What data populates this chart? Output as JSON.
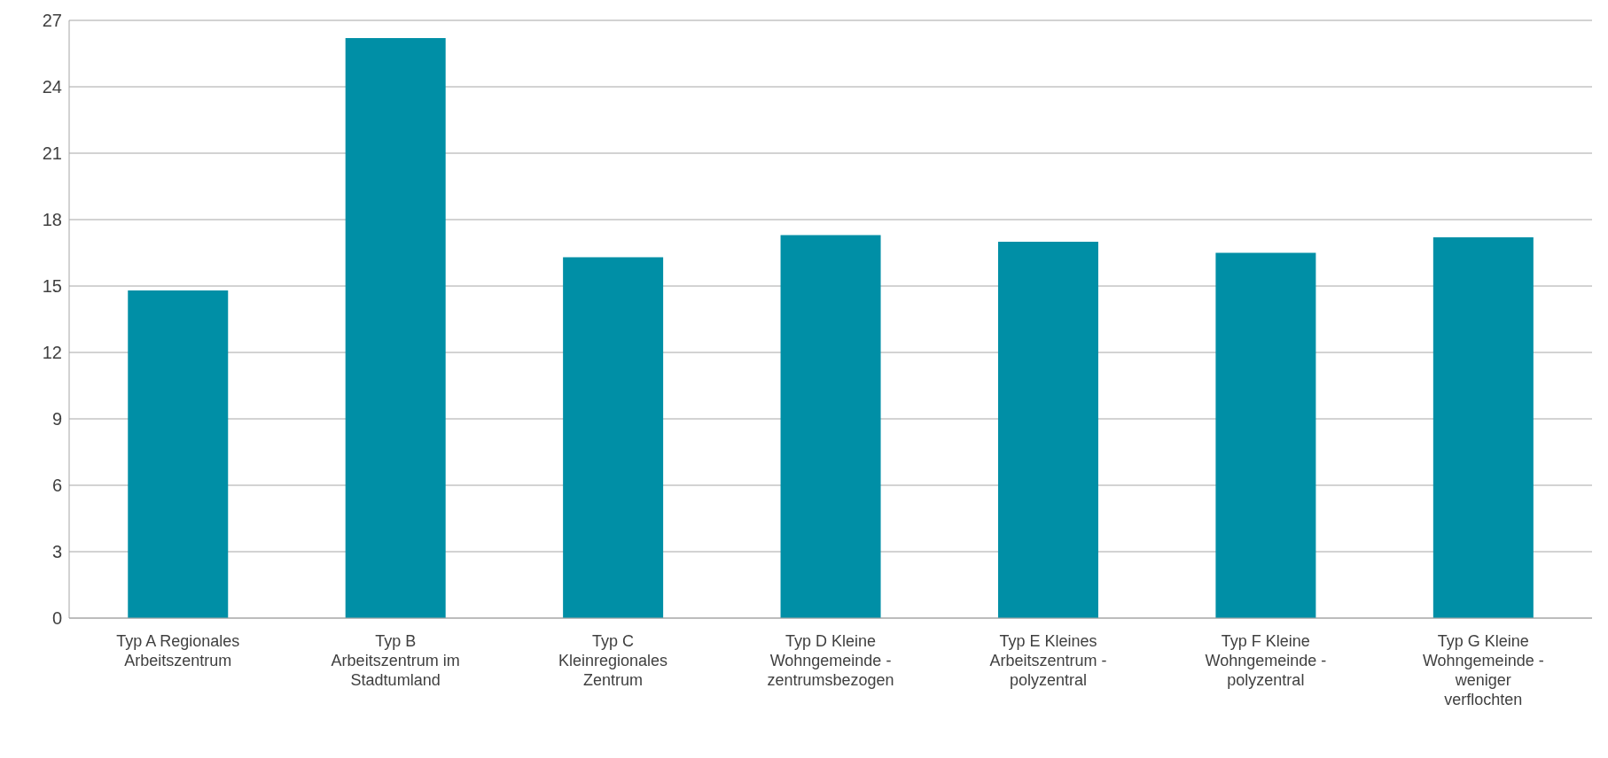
{
  "chart_data": {
    "type": "bar",
    "categories": [
      "Typ A Regionales Arbeitszentrum",
      "Typ B Arbeitszentrum im Stadtumland",
      "Typ C Kleinregionales Zentrum",
      "Typ D Kleine Wohngemeinde - zentrumsbezogen",
      "Typ E Kleines Arbeitszentrum - polyzentral",
      "Typ F Kleine Wohngemeinde - polyzentral",
      "Typ G Kleine Wohngemeinde - weniger verflochten"
    ],
    "values": [
      14.8,
      26.2,
      16.3,
      17.3,
      17.0,
      16.5,
      17.2
    ],
    "color": "#008fa6",
    "ylim": [
      0,
      27
    ],
    "yticks": [
      0,
      3,
      6,
      9,
      12,
      15,
      18,
      21,
      24,
      27
    ],
    "grid": "y"
  }
}
